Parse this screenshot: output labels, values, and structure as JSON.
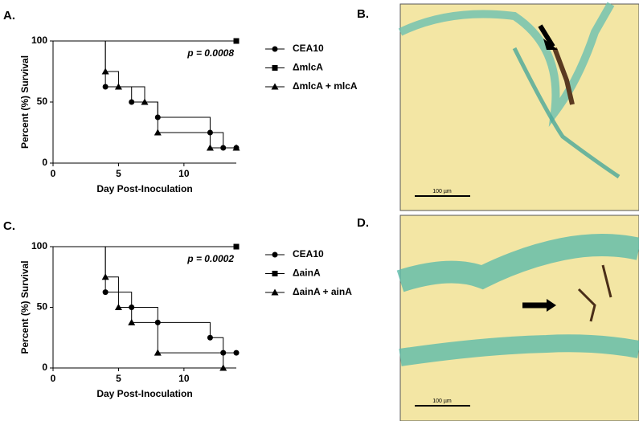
{
  "panel_labels": [
    "A.",
    "B.",
    "C.",
    "D."
  ],
  "images": [
    {
      "scale_bar": "100 µm"
    },
    {
      "scale_bar": "100 µm"
    }
  ],
  "chart_data": [
    {
      "type": "step",
      "annotation": "p = 0.0008",
      "x_label": "Day Post-Inoculation",
      "y_label": "Percent (%) Survival",
      "xlim": [
        0,
        14
      ],
      "ylim": [
        0,
        100
      ],
      "xticks": [
        0,
        5,
        10
      ],
      "yticks": [
        0,
        50,
        100
      ],
      "series": [
        {
          "name": "CEA10",
          "marker": "circle",
          "color": "#000000",
          "x": [
            0,
            4,
            6,
            8,
            12,
            13,
            14
          ],
          "values": [
            100,
            62.5,
            50,
            37.5,
            25,
            12.5,
            12.5
          ]
        },
        {
          "name": "ΔmlcA",
          "marker": "square",
          "color": "#000000",
          "x": [
            0,
            14
          ],
          "values": [
            100,
            100
          ]
        },
        {
          "name": "ΔmlcA + mlcA",
          "marker": "triangle",
          "color": "#000000",
          "x": [
            0,
            4,
            5,
            7,
            8,
            12,
            14
          ],
          "values": [
            100,
            75,
            62.5,
            50,
            25,
            12.5,
            12.5
          ]
        }
      ]
    },
    {
      "type": "step",
      "annotation": "p = 0.0002",
      "x_label": "Day Post-Inoculation",
      "y_label": "Percent (%) Survival",
      "xlim": [
        0,
        14
      ],
      "ylim": [
        0,
        100
      ],
      "xticks": [
        0,
        5,
        10
      ],
      "yticks": [
        0,
        50,
        100
      ],
      "series": [
        {
          "name": "CEA10",
          "marker": "circle",
          "color": "#000000",
          "x": [
            0,
            4,
            6,
            8,
            12,
            13,
            14
          ],
          "values": [
            100,
            62.5,
            50,
            37.5,
            25,
            12.5,
            12.5
          ]
        },
        {
          "name": "ΔainA",
          "marker": "square",
          "color": "#000000",
          "x": [
            0,
            14
          ],
          "values": [
            100,
            100
          ]
        },
        {
          "name": "ΔainA + ainA",
          "marker": "triangle",
          "color": "#000000",
          "x": [
            0,
            4,
            5,
            6,
            8,
            13
          ],
          "values": [
            100,
            75,
            50,
            37.5,
            12.5,
            0
          ]
        }
      ]
    }
  ]
}
